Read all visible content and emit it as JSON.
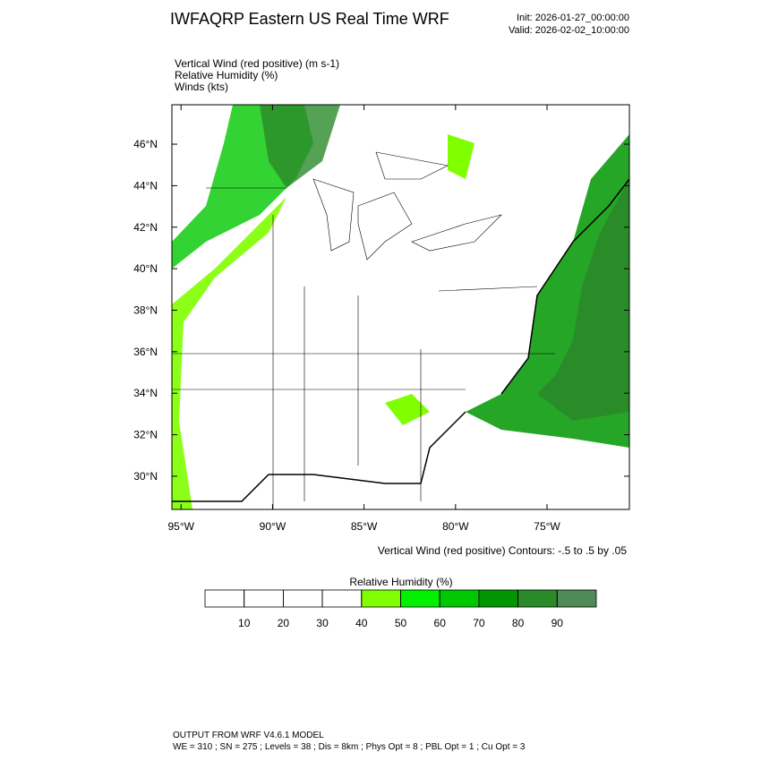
{
  "header": {
    "title": "IWFAQRP Eastern US Real Time WRF",
    "init": "Init: 2026-01-27_00:00:00",
    "valid": "Valid: 2026-02-02_10:00:00"
  },
  "fields": [
    "Vertical Wind (red positive)   (m s-1)",
    "Relative Humidity   (%)",
    "Winds   (kts)"
  ],
  "map": {
    "latlim": [
      28.4,
      47.9
    ],
    "lonlim": [
      -95.5,
      -70.5
    ],
    "lat_ticks": [
      {
        "value": 30,
        "label": "30°N"
      },
      {
        "value": 32,
        "label": "32°N"
      },
      {
        "value": 34,
        "label": "34°N"
      },
      {
        "value": 36,
        "label": "36°N"
      },
      {
        "value": 38,
        "label": "38°N"
      },
      {
        "value": 40,
        "label": "40°N"
      },
      {
        "value": 42,
        "label": "42°N"
      },
      {
        "value": 44,
        "label": "44°N"
      },
      {
        "value": 46,
        "label": "46°N"
      }
    ],
    "lon_ticks": [
      {
        "value": -95,
        "label": "95°W"
      },
      {
        "value": -90,
        "label": "90°W"
      },
      {
        "value": -85,
        "label": "85°W"
      },
      {
        "value": -80,
        "label": "80°W"
      },
      {
        "value": -75,
        "label": "75°W"
      }
    ],
    "contour_note": "Vertical Wind (red positive) Contours: -.5 to .5 by .05"
  },
  "colorbar": {
    "title": "Relative Humidity  (%)",
    "levels": [
      10,
      20,
      30,
      40,
      50,
      60,
      70,
      80,
      90
    ],
    "colors": [
      "#ffffff",
      "#ffffff",
      "#ffffff",
      "#ffffff",
      "#80ff00",
      "#00f000",
      "#00c800",
      "#009600",
      "#2a8a2a",
      "#508a58"
    ]
  },
  "footer": [
    "OUTPUT FROM WRF V4.6.1 MODEL",
    "WE = 310 ; SN = 275 ; Levels = 38 ; Dis = 8km ; Phys Opt = 8 ; PBL Opt = 1 ; Cu Opt = 3"
  ]
}
